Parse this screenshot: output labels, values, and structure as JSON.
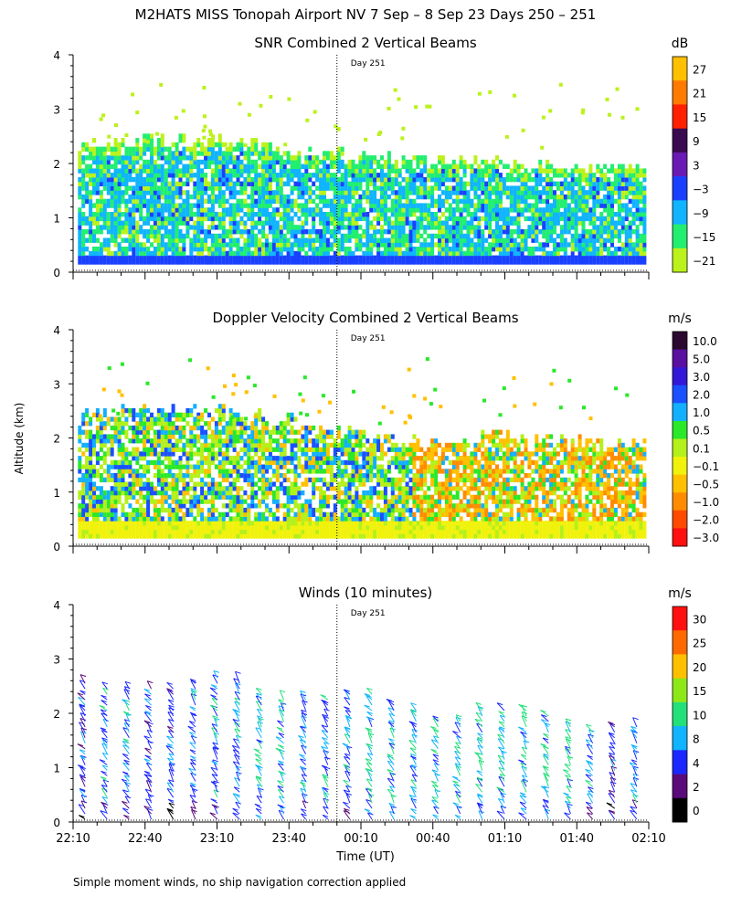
{
  "figure_title": "M2HATS MISS Tonopah Airport NV   7 Sep –  8 Sep 23 Days 250 – 251",
  "footnote": "Simple moment winds, no ship navigation correction applied",
  "ylabel": "Altitude (km)",
  "xlabel": "Time (UT)",
  "x_tick_labels": [
    "22:10",
    "22:40",
    "23:10",
    "23:40",
    "00:10",
    "00:40",
    "01:10",
    "01:40",
    "02:10"
  ],
  "y_tick_labels": [
    "0",
    "1",
    "2",
    "3",
    "4"
  ],
  "day_marker_label": "Day 251",
  "chart_data": [
    {
      "type": "heatmap",
      "title": "SNR Combined 2 Vertical Beams",
      "colorbar_unit": "dB",
      "colorbar_labels": [
        "27",
        "21",
        "15",
        "9",
        "3",
        "−3",
        "−9",
        "−15",
        "−21"
      ],
      "colorbar_colors": [
        "#ffc000",
        "#ff7a00",
        "#ff2000",
        "#3a0a50",
        "#6a1ab4",
        "#1a40ff",
        "#10b4ff",
        "#22ee70",
        "#bbf21c"
      ],
      "xlim_minutes_after_2210": [
        0,
        240
      ],
      "ylim_km": [
        0,
        4
      ],
      "day_boundary_time": "00:00",
      "echo_top_km_by_time": {
        "times": [
          "22:10",
          "22:40",
          "23:10",
          "23:40",
          "00:10",
          "00:40",
          "01:10",
          "01:40",
          "02:10"
        ],
        "top_km": [
          2.3,
          2.4,
          2.4,
          2.2,
          2.1,
          2.0,
          2.0,
          1.9,
          1.8
        ]
      },
      "note": "Strongest returns (−3 to 3 dB) below 0.3 km; mostly −15 to −9 dB up to ~2.2 km"
    },
    {
      "type": "heatmap",
      "title": "Doppler Velocity Combined 2 Vertical Beams",
      "colorbar_unit": "m/s",
      "colorbar_labels": [
        "10.0",
        "5.0",
        "3.0",
        "2.0",
        "1.0",
        "0.5",
        "0.1",
        "−0.1",
        "−0.5",
        "−1.0",
        "−2.0",
        "−3.0"
      ],
      "colorbar_colors": [
        "#2a0830",
        "#5a10a0",
        "#3418d8",
        "#1a50ff",
        "#12b0ff",
        "#2ae82a",
        "#b4f01a",
        "#f0f20c",
        "#ffc000",
        "#ff8c00",
        "#ff4a00",
        "#ff1010"
      ],
      "xlim_minutes_after_2210": [
        0,
        240
      ],
      "ylim_km": [
        0,
        4
      ],
      "day_boundary_time": "00:00",
      "echo_top_km_by_time": {
        "times": [
          "22:10",
          "22:40",
          "23:10",
          "23:40",
          "00:10",
          "00:40",
          "01:10",
          "01:40",
          "02:10"
        ],
        "top_km": [
          2.4,
          2.5,
          2.5,
          2.3,
          2.1,
          1.9,
          2.0,
          1.9,
          1.8
        ]
      },
      "note": "Near-zero (yellow) below 0.5 km; mixed −1 to +1 m/s aloft"
    },
    {
      "type": "scatter",
      "title": "Winds (10 minutes)",
      "colorbar_unit": "m/s",
      "colorbar_labels": [
        "30",
        "25",
        "20",
        "15",
        "10",
        "8",
        "4",
        "2",
        "0"
      ],
      "colorbar_colors": [
        "#ff1010",
        "#ff6a00",
        "#ffc000",
        "#8ee818",
        "#22e07a",
        "#10b4ff",
        "#1a28ff",
        "#5a0a7a",
        "#000000"
      ],
      "profile_interval_minutes": 10,
      "xlim_minutes_after_2210": [
        0,
        240
      ],
      "ylim_km": [
        0,
        4
      ],
      "day_boundary_time": "00:00",
      "profile_top_km": [
        2.6,
        2.5,
        2.5,
        2.5,
        2.5,
        2.6,
        2.7,
        2.6,
        2.4,
        2.3,
        2.3,
        2.3,
        2.4,
        2.4,
        2.2,
        2.1,
        1.9,
        1.9,
        2.1,
        2.1,
        2.1,
        2.0,
        1.8,
        1.7,
        1.8,
        1.8
      ],
      "representative_speed_ms": [
        6,
        8,
        8,
        6,
        6,
        8,
        8,
        8,
        10,
        10,
        8,
        8,
        8,
        10,
        10,
        10,
        10,
        10,
        10,
        10,
        10,
        10,
        10,
        8,
        6,
        8
      ]
    }
  ]
}
